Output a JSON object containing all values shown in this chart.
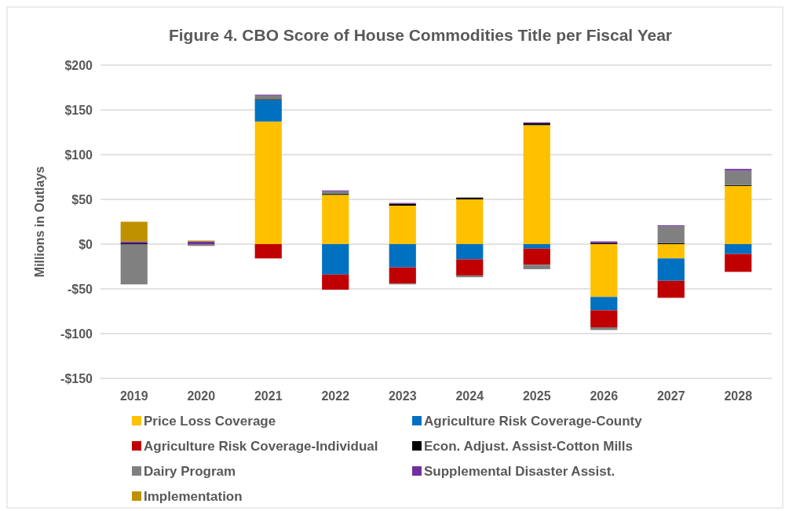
{
  "chart_data": {
    "type": "bar",
    "stacked": true,
    "title": "Figure 4. CBO Score of House Commodities  Title per Fiscal Year",
    "ylabel": "Millions in Outlays",
    "categories": [
      "2019",
      "2020",
      "2021",
      "2022",
      "2023",
      "2024",
      "2025",
      "2026",
      "2027",
      "2028"
    ],
    "series": [
      {
        "name": "Price Loss Coverage",
        "color": "#ffc000",
        "values": [
          0,
          0,
          137,
          55,
          43,
          50,
          133,
          -59,
          -16,
          65
        ]
      },
      {
        "name": "Agriculture Risk Coverage-County",
        "color": "#0070c0",
        "values": [
          0,
          0,
          24,
          -34,
          -26,
          -17,
          -5,
          -15,
          -25,
          -11
        ]
      },
      {
        "name": "Agriculture Risk Coverage-Individual",
        "color": "#c00000",
        "values": [
          0,
          0,
          -16,
          -17,
          -18,
          -18,
          -18,
          -19,
          -19,
          -20
        ]
      },
      {
        "name": "Econ. Adjust. Assist-Cotton Mills",
        "color": "#000000",
        "values": [
          1,
          0,
          1,
          1,
          2,
          2,
          2,
          1,
          1,
          1
        ]
      },
      {
        "name": "Dairy Program",
        "color": "#808080",
        "values": [
          -45,
          -2,
          4,
          3,
          -1,
          -2,
          -5,
          -3,
          19,
          16
        ]
      },
      {
        "name": "Supplemental Disaster Assist.",
        "color": "#7030a0",
        "values": [
          2,
          3,
          1,
          1,
          1,
          0,
          1,
          2,
          1,
          2
        ]
      },
      {
        "name": "Implementation",
        "color": "#bf9000",
        "values": [
          22,
          1,
          0,
          0,
          0,
          0,
          0,
          0,
          0,
          0
        ]
      }
    ],
    "ylim": [
      -150,
      200
    ],
    "yticks": [
      {
        "value": -150,
        "label": "-$150"
      },
      {
        "value": -100,
        "label": "-$100"
      },
      {
        "value": -50,
        "label": "-$50"
      },
      {
        "value": 0,
        "label": "$0"
      },
      {
        "value": 50,
        "label": "$50"
      },
      {
        "value": 100,
        "label": "$100"
      },
      {
        "value": 150,
        "label": "$150"
      },
      {
        "value": 200,
        "label": "$200"
      }
    ],
    "grid": "y",
    "legend": "bottom"
  }
}
